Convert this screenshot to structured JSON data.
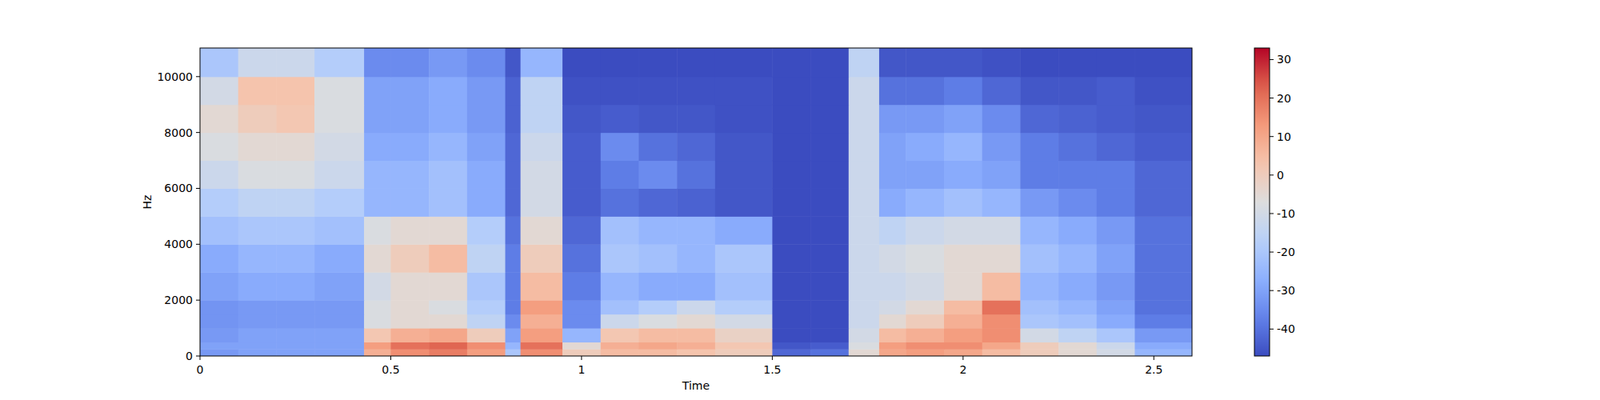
{
  "chart_data": {
    "type": "heatmap",
    "xlabel": "Time",
    "ylabel": "Hz",
    "xlim": [
      0,
      2.6
    ],
    "ylim": [
      0,
      11025
    ],
    "xticks": [
      0,
      0.5,
      1,
      1.5,
      2,
      2.5
    ],
    "yticks": [
      0,
      2000,
      4000,
      6000,
      8000,
      10000
    ],
    "time_edges": [
      0,
      0.1,
      0.2,
      0.3,
      0.43,
      0.5,
      0.6,
      0.7,
      0.8,
      0.84,
      0.95,
      1.05,
      1.15,
      1.25,
      1.35,
      1.5,
      1.6,
      1.7,
      1.78,
      1.85,
      1.95,
      2.05,
      2.15,
      2.25,
      2.35,
      2.45,
      2.6
    ],
    "freq_edges": [
      0,
      250,
      500,
      1000,
      1500,
      2000,
      3000,
      4000,
      5000,
      6000,
      7000,
      8000,
      9000,
      10000,
      11025
    ],
    "cells": [
      [
        -32,
        -30,
        -30,
        -30,
        8,
        15,
        18,
        12,
        -20,
        15,
        0,
        5,
        5,
        3,
        0,
        -42,
        -40,
        -5,
        10,
        12,
        10,
        5,
        0,
        -5,
        -10,
        -25
      ],
      [
        -30,
        -30,
        -30,
        -30,
        12,
        20,
        22,
        15,
        -25,
        20,
        -5,
        8,
        10,
        8,
        2,
        -45,
        -44,
        -8,
        12,
        15,
        15,
        10,
        0,
        -5,
        -12,
        -28
      ],
      [
        -32,
        -30,
        -30,
        -30,
        2,
        8,
        10,
        0,
        -30,
        12,
        -25,
        2,
        5,
        5,
        -2,
        -47,
        -47,
        -10,
        5,
        8,
        12,
        15,
        -10,
        -15,
        -20,
        -32
      ],
      [
        -33,
        -32,
        -32,
        -32,
        -8,
        -5,
        -5,
        -15,
        -35,
        8,
        -35,
        -12,
        -8,
        -5,
        -10,
        -47,
        -47,
        -12,
        -5,
        0,
        8,
        15,
        -20,
        -22,
        -28,
        -38
      ],
      [
        -33,
        -32,
        -32,
        -32,
        -8,
        -5,
        -8,
        -18,
        -38,
        12,
        -35,
        -22,
        -18,
        -12,
        -18,
        -47,
        -47,
        -12,
        -10,
        -5,
        5,
        20,
        -22,
        -25,
        -30,
        -40
      ],
      [
        -30,
        -28,
        -28,
        -30,
        -10,
        -5,
        -5,
        -20,
        -38,
        5,
        -38,
        -25,
        -28,
        -28,
        -22,
        -47,
        -47,
        -12,
        -12,
        -10,
        -5,
        5,
        -25,
        -28,
        -32,
        -40
      ],
      [
        -28,
        -25,
        -25,
        -28,
        -5,
        0,
        5,
        -15,
        -38,
        0,
        -40,
        -20,
        -22,
        -25,
        -20,
        -47,
        -47,
        -12,
        -10,
        -8,
        -5,
        -5,
        -22,
        -25,
        -30,
        -40
      ],
      [
        -22,
        -20,
        -20,
        -22,
        -8,
        -5,
        -5,
        -18,
        -40,
        -5,
        -42,
        -22,
        -25,
        -25,
        -28,
        -47,
        -47,
        -12,
        -15,
        -12,
        -10,
        -10,
        -25,
        -28,
        -32,
        -40
      ],
      [
        -18,
        -15,
        -15,
        -18,
        -25,
        -25,
        -22,
        -28,
        -42,
        -10,
        -44,
        -40,
        -42,
        -43,
        -45,
        -47,
        -47,
        -12,
        -28,
        -25,
        -22,
        -25,
        -32,
        -35,
        -38,
        -42
      ],
      [
        -12,
        -8,
        -8,
        -12,
        -25,
        -25,
        -22,
        -28,
        -42,
        -10,
        -44,
        -38,
        -35,
        -40,
        -45,
        -47,
        -47,
        -12,
        -30,
        -30,
        -28,
        -30,
        -38,
        -38,
        -38,
        -42
      ],
      [
        -8,
        -5,
        -5,
        -10,
        -28,
        -28,
        -25,
        -30,
        -42,
        -12,
        -44,
        -35,
        -40,
        -42,
        -45,
        -47,
        -47,
        -12,
        -30,
        -28,
        -25,
        -32,
        -38,
        -40,
        -42,
        -44
      ],
      [
        -5,
        0,
        2,
        -8,
        -30,
        -30,
        -28,
        -32,
        -43,
        -15,
        -45,
        -44,
        -45,
        -45,
        -46,
        -47,
        -47,
        -12,
        -32,
        -32,
        -30,
        -35,
        -42,
        -43,
        -44,
        -45
      ],
      [
        -10,
        3,
        3,
        -8,
        -30,
        -30,
        -28,
        -32,
        -43,
        -15,
        -46,
        -46,
        -46,
        -46,
        -46,
        -47,
        -47,
        -12,
        -40,
        -40,
        -38,
        -42,
        -45,
        -45,
        -44,
        -46
      ],
      [
        -20,
        -12,
        -12,
        -18,
        -35,
        -35,
        -32,
        -35,
        -45,
        -25,
        -47,
        -47,
        -47,
        -47,
        -47,
        -47,
        -47,
        -15,
        -45,
        -45,
        -45,
        -46,
        -47,
        -47,
        -47,
        -47
      ]
    ],
    "colorbar_lim": [
      -47,
      33
    ],
    "colorbar_ticks": [
      -40,
      -30,
      -20,
      -10,
      0,
      10,
      20,
      30
    ]
  }
}
